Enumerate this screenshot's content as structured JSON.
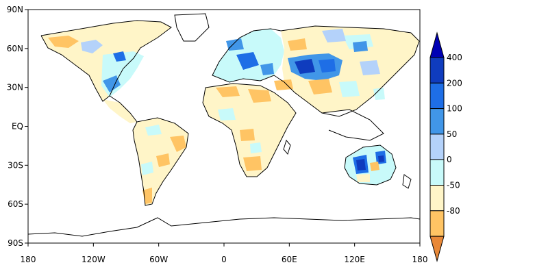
{
  "map": {
    "projection": "equirectangular",
    "lon_range": [
      -180,
      180
    ],
    "lat_range": [
      -90,
      90
    ],
    "x_ticks": [
      {
        "lon": -180,
        "label": "180"
      },
      {
        "lon": -120,
        "label": "120W"
      },
      {
        "lon": -60,
        "label": "60W"
      },
      {
        "lon": 0,
        "label": "0"
      },
      {
        "lon": 60,
        "label": "60E"
      },
      {
        "lon": 120,
        "label": "120E"
      },
      {
        "lon": 180,
        "label": "180"
      }
    ],
    "y_ticks": [
      {
        "lat": 90,
        "label": "90N"
      },
      {
        "lat": 60,
        "label": "60N"
      },
      {
        "lat": 30,
        "label": "30N"
      },
      {
        "lat": 0,
        "label": "EQ"
      },
      {
        "lat": -30,
        "label": "30S"
      },
      {
        "lat": -60,
        "label": "60S"
      },
      {
        "lat": -90,
        "label": "90S"
      }
    ],
    "background_color": "#ffffff"
  },
  "colorbar": {
    "extend": "both",
    "upper_triangle_color": "#0000b4",
    "lower_triangle_color": "#e88838",
    "bins": [
      {
        "color": "#0f3cbe",
        "label": "400"
      },
      {
        "color": "#1e6ee6",
        "label": "200"
      },
      {
        "color": "#4196e8",
        "label": "100"
      },
      {
        "color": "#b4d2fa",
        "label": "50"
      },
      {
        "color": "#c8fafa",
        "label": "0"
      },
      {
        "color": "#fff5c8",
        "label": "-50"
      },
      {
        "color": "#ffc464",
        "label": "-80"
      }
    ]
  },
  "regions": [
    {
      "id": "north-america-west",
      "color": "#fff5c8"
    },
    {
      "id": "north-america-east",
      "color": "#c8fafa"
    },
    {
      "id": "south-america",
      "color": "#fff5c8"
    },
    {
      "id": "africa",
      "color": "#fff5c8"
    },
    {
      "id": "europe",
      "color": "#c8fafa"
    },
    {
      "id": "central-asia",
      "color": "#1e6ee6"
    },
    {
      "id": "australia",
      "color": "#c8fafa"
    }
  ]
}
